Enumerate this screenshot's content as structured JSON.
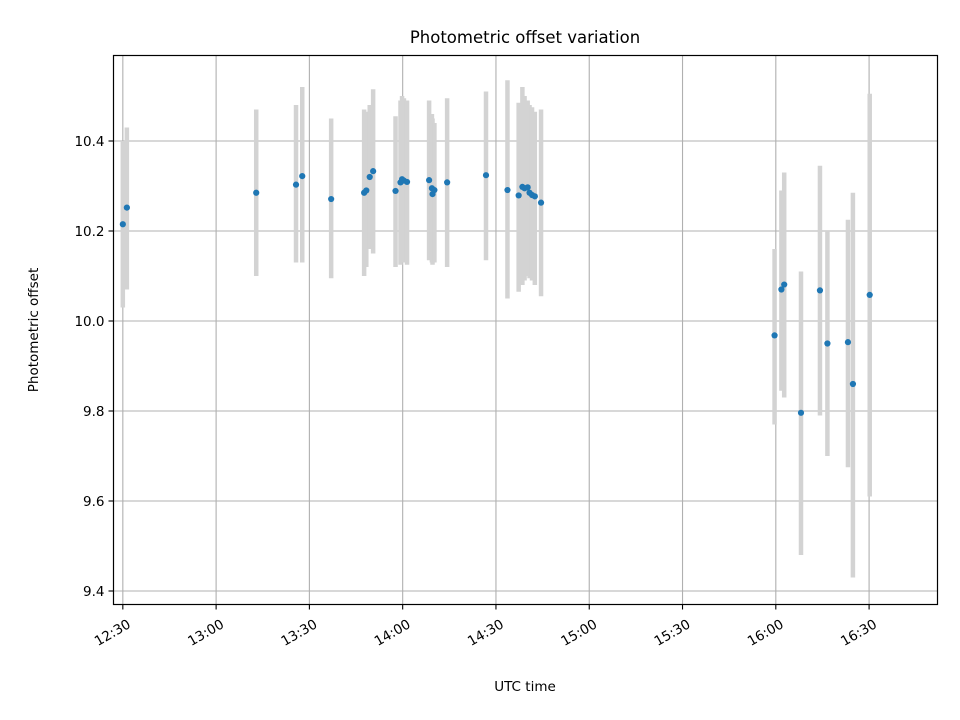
{
  "chart_data": {
    "type": "scatter",
    "title": "Photometric offset variation",
    "xlabel": "UTC time",
    "ylabel": "Photometric offset",
    "x_unit": "minutes after 00:00 UTC",
    "xlim": [
      747,
      1012
    ],
    "ylim": [
      9.37,
      10.59
    ],
    "x_ticks": [
      {
        "value": 750,
        "label": "12:30"
      },
      {
        "value": 780,
        "label": "13:00"
      },
      {
        "value": 810,
        "label": "13:30"
      },
      {
        "value": 840,
        "label": "14:00"
      },
      {
        "value": 870,
        "label": "14:30"
      },
      {
        "value": 900,
        "label": "15:00"
      },
      {
        "value": 930,
        "label": "15:30"
      },
      {
        "value": 960,
        "label": "16:00"
      },
      {
        "value": 990,
        "label": "16:30"
      }
    ],
    "y_ticks": [
      {
        "value": 9.4,
        "label": "9.4"
      },
      {
        "value": 9.6,
        "label": "9.6"
      },
      {
        "value": 9.8,
        "label": "9.8"
      },
      {
        "value": 10.0,
        "label": "10.0"
      },
      {
        "value": 10.2,
        "label": "10.2"
      },
      {
        "value": 10.4,
        "label": "10.4"
      }
    ],
    "grid": true,
    "legend": "none",
    "colors": {
      "points": "#1f77b4",
      "errorbars": "#d3d3d3",
      "grid": "#b0b0b0"
    },
    "points": [
      {
        "t": "12:30",
        "x": 750.0,
        "y": 10.215,
        "lo": 10.03,
        "hi": 10.4
      },
      {
        "t": "12:31",
        "x": 751.3,
        "y": 10.252,
        "lo": 10.07,
        "hi": 10.43
      },
      {
        "t": "13:13",
        "x": 792.9,
        "y": 10.285,
        "lo": 10.1,
        "hi": 10.47
      },
      {
        "t": "13:26",
        "x": 805.7,
        "y": 10.303,
        "lo": 10.13,
        "hi": 10.48
      },
      {
        "t": "13:28",
        "x": 807.7,
        "y": 10.322,
        "lo": 10.13,
        "hi": 10.52
      },
      {
        "t": "13:37",
        "x": 817.0,
        "y": 10.271,
        "lo": 10.095,
        "hi": 10.45
      },
      {
        "t": "13:47",
        "x": 827.6,
        "y": 10.285,
        "lo": 10.1,
        "hi": 10.47
      },
      {
        "t": "13:48",
        "x": 828.3,
        "y": 10.29,
        "lo": 10.12,
        "hi": 10.465
      },
      {
        "t": "13:49",
        "x": 829.4,
        "y": 10.32,
        "lo": 10.16,
        "hi": 10.48
      },
      {
        "t": "13:50",
        "x": 830.5,
        "y": 10.333,
        "lo": 10.15,
        "hi": 10.515
      },
      {
        "t": "13:57",
        "x": 837.7,
        "y": 10.289,
        "lo": 10.12,
        "hi": 10.455
      },
      {
        "t": "13:59",
        "x": 839.3,
        "y": 10.308,
        "lo": 10.125,
        "hi": 10.49
      },
      {
        "t": "13:59",
        "x": 839.8,
        "y": 10.315,
        "lo": 10.13,
        "hi": 10.5
      },
      {
        "t": "14:00",
        "x": 840.4,
        "y": 10.312,
        "lo": 10.13,
        "hi": 10.495
      },
      {
        "t": "14:01",
        "x": 841.4,
        "y": 10.309,
        "lo": 10.125,
        "hi": 10.49
      },
      {
        "t": "14:08",
        "x": 848.5,
        "y": 10.313,
        "lo": 10.135,
        "hi": 10.49
      },
      {
        "t": "14:09",
        "x": 849.4,
        "y": 10.295,
        "lo": 10.13,
        "hi": 10.46
      },
      {
        "t": "14:09",
        "x": 849.6,
        "y": 10.282,
        "lo": 10.125,
        "hi": 10.45
      },
      {
        "t": "14:10",
        "x": 850.2,
        "y": 10.291,
        "lo": 10.13,
        "hi": 10.44
      },
      {
        "t": "14:14",
        "x": 854.3,
        "y": 10.308,
        "lo": 10.12,
        "hi": 10.495
      },
      {
        "t": "14:27",
        "x": 866.8,
        "y": 10.324,
        "lo": 10.135,
        "hi": 10.51
      },
      {
        "t": "14:34",
        "x": 873.7,
        "y": 10.291,
        "lo": 10.05,
        "hi": 10.535
      },
      {
        "t": "14:37",
        "x": 877.3,
        "y": 10.279,
        "lo": 10.065,
        "hi": 10.485
      },
      {
        "t": "14:38",
        "x": 878.5,
        "y": 10.298,
        "lo": 10.08,
        "hi": 10.52
      },
      {
        "t": "14:39",
        "x": 879.2,
        "y": 10.295,
        "lo": 10.09,
        "hi": 10.5
      },
      {
        "t": "14:40",
        "x": 880.2,
        "y": 10.297,
        "lo": 10.1,
        "hi": 10.49
      },
      {
        "t": "14:40",
        "x": 880.8,
        "y": 10.285,
        "lo": 10.095,
        "hi": 10.48
      },
      {
        "t": "14:41",
        "x": 881.6,
        "y": 10.28,
        "lo": 10.09,
        "hi": 10.475
      },
      {
        "t": "14:42",
        "x": 882.5,
        "y": 10.277,
        "lo": 10.08,
        "hi": 10.465
      },
      {
        "t": "14:44",
        "x": 884.5,
        "y": 10.263,
        "lo": 10.055,
        "hi": 10.47
      },
      {
        "t": "15:59",
        "x": 959.6,
        "y": 9.968,
        "lo": 9.77,
        "hi": 10.16
      },
      {
        "t": "16:02",
        "x": 961.8,
        "y": 10.07,
        "lo": 9.845,
        "hi": 10.29
      },
      {
        "t": "16:03",
        "x": 962.7,
        "y": 10.081,
        "lo": 9.83,
        "hi": 10.33
      },
      {
        "t": "16:08",
        "x": 968.1,
        "y": 9.796,
        "lo": 9.48,
        "hi": 10.11
      },
      {
        "t": "16:14",
        "x": 974.2,
        "y": 10.068,
        "lo": 9.79,
        "hi": 10.345
      },
      {
        "t": "16:16",
        "x": 976.6,
        "y": 9.95,
        "lo": 9.7,
        "hi": 10.2
      },
      {
        "t": "16:23",
        "x": 983.2,
        "y": 9.953,
        "lo": 9.675,
        "hi": 10.225
      },
      {
        "t": "16:25",
        "x": 984.8,
        "y": 9.86,
        "lo": 9.43,
        "hi": 10.285
      },
      {
        "t": "16:30",
        "x": 990.2,
        "y": 10.058,
        "lo": 9.61,
        "hi": 10.505
      }
    ]
  }
}
